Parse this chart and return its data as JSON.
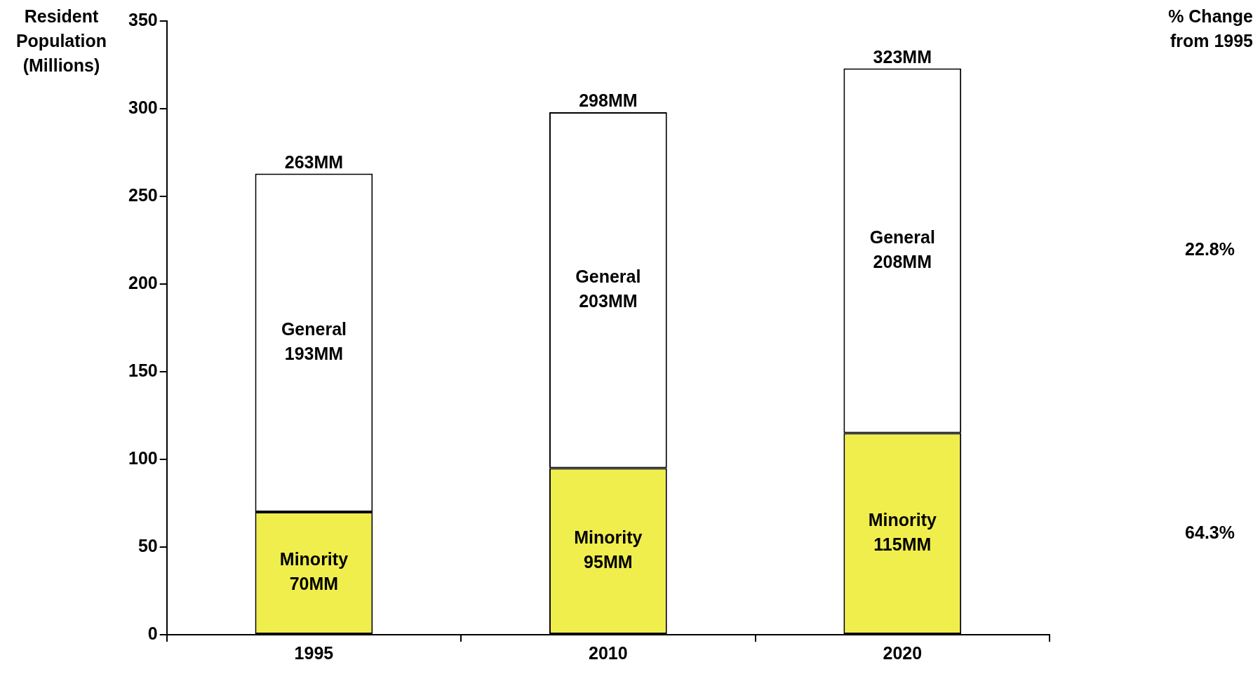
{
  "chart_data": {
    "type": "bar",
    "stacked": true,
    "ylabel": "Resident Population (Millions)",
    "categories": [
      "1995",
      "2010",
      "2020"
    ],
    "series": [
      {
        "name": "Minority",
        "color": "#f0ee4c",
        "values": [
          70,
          95,
          115
        ],
        "value_labels": [
          "70MM",
          "95MM",
          "115MM"
        ]
      },
      {
        "name": "General",
        "color": "#ffffff",
        "values": [
          193,
          203,
          208
        ],
        "value_labels": [
          "193MM",
          "203MM",
          "208MM"
        ]
      }
    ],
    "totals": [
      "263MM",
      "298MM",
      "323MM"
    ],
    "ylim": [
      0,
      350
    ],
    "yticks": [
      0,
      50,
      100,
      150,
      200,
      250,
      300,
      350
    ],
    "annotations": [
      "% Change from 1995",
      "22.8%",
      "64.3%"
    ],
    "grid": false,
    "legend": false
  }
}
